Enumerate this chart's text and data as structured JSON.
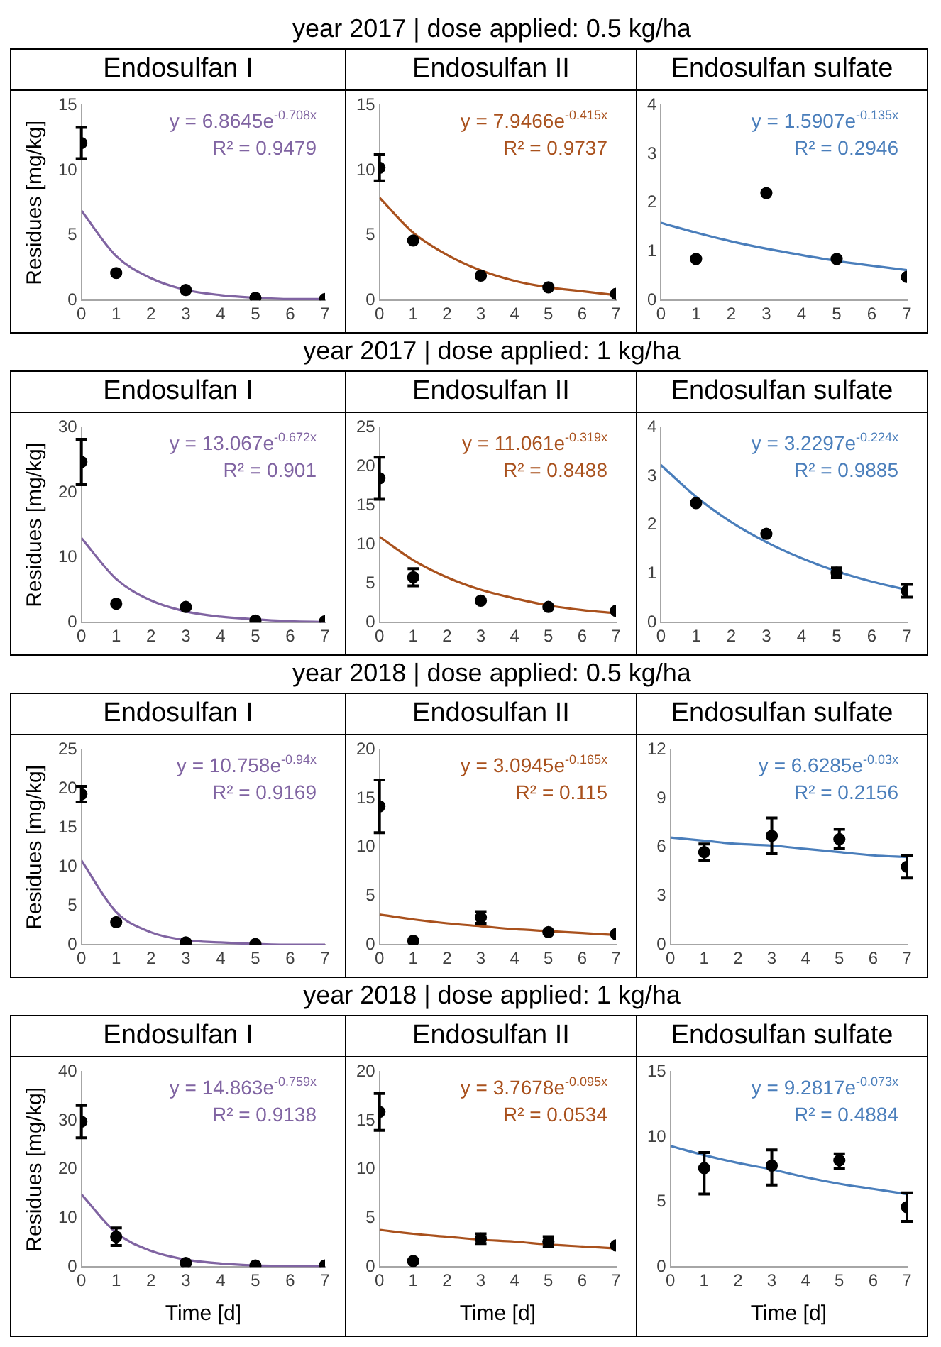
{
  "chart_data": [
    {
      "type": "scatter",
      "title": "Endosulfan I",
      "ylabel": "Residues [mg/kg]",
      "xlim": [
        0,
        7
      ],
      "xticks": [
        0,
        1,
        2,
        3,
        4,
        5,
        6,
        7
      ],
      "ylim": [
        0,
        15
      ],
      "yticks": [
        0,
        5,
        10,
        15
      ],
      "marker": "circle",
      "grid": false,
      "legend": false,
      "series": [
        {
          "type": "scatter",
          "color": "#000000",
          "x": [
            0,
            1,
            3,
            5,
            7
          ],
          "values": [
            12.1,
            2.1,
            0.8,
            0.2,
            0.1
          ],
          "errors": [
            1.2,
            null,
            null,
            null,
            null
          ]
        },
        {
          "type": "line",
          "marker": "none",
          "color": "#8064a2",
          "x": [
            0,
            1,
            2,
            3,
            4,
            5,
            6,
            7
          ],
          "values": [
            6.9,
            3.4,
            1.7,
            0.8,
            0.4,
            0.2,
            0.1,
            0.1
          ]
        }
      ],
      "annotations": [
        "y = 6.8645e$^{-0.708x}$",
        "R² = 0.9479"
      ]
    },
    {
      "type": "scatter",
      "subtitle": "year 2017 | dose applied: 0.5 kg/ha",
      "title": "Endosulfan II",
      "xlim": [
        0,
        7
      ],
      "xticks": [
        0,
        1,
        2,
        3,
        4,
        5,
        6,
        7
      ],
      "ylim": [
        0,
        15
      ],
      "yticks": [
        0,
        5,
        10,
        15
      ],
      "marker": "circle",
      "grid": false,
      "legend": false,
      "series": [
        {
          "type": "scatter",
          "color": "#000000",
          "x": [
            0,
            1,
            3,
            5,
            7
          ],
          "values": [
            10.2,
            4.6,
            1.9,
            1.0,
            0.5
          ],
          "errors": [
            1.0,
            null,
            null,
            null,
            null
          ]
        },
        {
          "type": "line",
          "marker": "none",
          "color": "#a9511d",
          "x": [
            0,
            1,
            2,
            3,
            4,
            5,
            6,
            7
          ],
          "values": [
            7.9,
            5.2,
            3.5,
            2.3,
            1.5,
            1.0,
            0.7,
            0.4
          ]
        }
      ],
      "annotations": [
        "y = 7.9466e$^{-0.415x}$",
        "R² = 0.9737"
      ]
    },
    {
      "type": "scatter",
      "title": "Endosulfan sulfate",
      "xlim": [
        0,
        7
      ],
      "xticks": [
        0,
        1,
        2,
        3,
        4,
        5,
        6,
        7
      ],
      "ylim": [
        0,
        4
      ],
      "yticks": [
        0,
        1,
        2,
        3,
        4
      ],
      "marker": "circle",
      "grid": false,
      "legend": false,
      "series": [
        {
          "type": "scatter",
          "color": "#000000",
          "x": [
            1,
            3,
            5,
            7
          ],
          "values": [
            0.85,
            2.2,
            0.85,
            0.48
          ]
        },
        {
          "type": "line",
          "marker": "none",
          "color": "#4a7ebb",
          "x": [
            0,
            1,
            2,
            3,
            4,
            5,
            6,
            7
          ],
          "values": [
            1.59,
            1.39,
            1.21,
            1.06,
            0.93,
            0.81,
            0.71,
            0.62
          ]
        }
      ],
      "annotations": [
        "y = 1.5907e$^{-0.135x}$",
        "R² = 0.2946"
      ]
    },
    {
      "type": "scatter",
      "title": "Endosulfan I",
      "ylabel": "Residues [mg/kg]",
      "xlim": [
        0,
        7
      ],
      "xticks": [
        0,
        1,
        2,
        3,
        4,
        5,
        6,
        7
      ],
      "ylim": [
        0,
        30
      ],
      "yticks": [
        0,
        10,
        20,
        30
      ],
      "marker": "circle",
      "grid": false,
      "legend": false,
      "series": [
        {
          "type": "scatter",
          "color": "#000000",
          "x": [
            0,
            1,
            3,
            5,
            7
          ],
          "values": [
            24.7,
            2.9,
            2.4,
            0.3,
            0.2
          ],
          "errors": [
            3.5,
            null,
            null,
            null,
            null
          ]
        },
        {
          "type": "line",
          "marker": "none",
          "color": "#8064a2",
          "x": [
            0,
            1,
            2,
            3,
            4,
            5,
            6,
            7
          ],
          "values": [
            13,
            6.7,
            3.4,
            1.7,
            0.9,
            0.5,
            0.2,
            0.1
          ]
        }
      ],
      "annotations": [
        "y = 13.067e$^{-0.672x}$",
        "R² = 0.901"
      ]
    },
    {
      "type": "scatter",
      "subtitle": "year 2017 | dose applied: 1 kg/ha",
      "title": "Endosulfan II",
      "xlim": [
        0,
        7
      ],
      "xticks": [
        0,
        1,
        2,
        3,
        4,
        5,
        6,
        7
      ],
      "ylim": [
        0,
        25
      ],
      "yticks": [
        0,
        5,
        10,
        15,
        20,
        25
      ],
      "marker": "circle",
      "grid": false,
      "legend": false,
      "series": [
        {
          "type": "scatter",
          "color": "#000000",
          "x": [
            0,
            1,
            3,
            5,
            7
          ],
          "values": [
            18.5,
            5.8,
            2.8,
            2.0,
            1.5
          ],
          "errors": [
            2.7,
            1.1,
            null,
            null,
            null
          ]
        },
        {
          "type": "line",
          "marker": "none",
          "color": "#a9511d",
          "x": [
            0,
            1,
            2,
            3,
            4,
            5,
            6,
            7
          ],
          "values": [
            11,
            8,
            5.8,
            4.2,
            3.1,
            2.2,
            1.6,
            1.2
          ]
        }
      ],
      "annotations": [
        "y = 11.061e$^{-0.319x}$",
        "R² = 0.8488"
      ]
    },
    {
      "type": "scatter",
      "title": "Endosulfan sulfate",
      "xlim": [
        0,
        7
      ],
      "xticks": [
        0,
        1,
        2,
        3,
        4,
        5,
        6,
        7
      ],
      "ylim": [
        0,
        4
      ],
      "yticks": [
        0,
        1,
        2,
        3,
        4
      ],
      "marker": "circle",
      "grid": false,
      "legend": false,
      "series": [
        {
          "type": "scatter",
          "color": "#000000",
          "x": [
            1,
            3,
            5,
            7
          ],
          "values": [
            2.45,
            1.82,
            1.02,
            0.65
          ],
          "errors": [
            null,
            null,
            0.1,
            0.13
          ]
        },
        {
          "type": "line",
          "marker": "none",
          "color": "#4a7ebb",
          "x": [
            0,
            1,
            2,
            3,
            4,
            5,
            6,
            7
          ],
          "values": [
            3.23,
            2.58,
            2.06,
            1.65,
            1.32,
            1.05,
            0.84,
            0.67
          ]
        }
      ],
      "annotations": [
        "y = 3.2297e$^{-0.224x}$",
        "R² = 0.9885"
      ]
    },
    {
      "type": "scatter",
      "title": "Endosulfan I",
      "ylabel": "Residues [mg/kg]",
      "xlim": [
        0,
        7
      ],
      "xticks": [
        0,
        1,
        2,
        3,
        4,
        5,
        6,
        7
      ],
      "ylim": [
        0,
        25
      ],
      "yticks": [
        0,
        5,
        10,
        15,
        20,
        25
      ],
      "marker": "circle",
      "grid": false,
      "legend": false,
      "series": [
        {
          "type": "scatter",
          "color": "#000000",
          "x": [
            0,
            1,
            3,
            5
          ],
          "values": [
            19.3,
            2.9,
            0.3,
            0.1
          ],
          "errors": [
            1.0,
            null,
            null,
            null
          ]
        },
        {
          "type": "line",
          "marker": "none",
          "color": "#8064a2",
          "x": [
            0,
            1,
            2,
            3,
            4,
            5,
            6,
            7
          ],
          "values": [
            10.8,
            4.2,
            1.6,
            0.6,
            0.3,
            0.1,
            0,
            0
          ]
        }
      ],
      "annotations": [
        "y = 10.758e$^{-0.94x}$",
        "R² = 0.9169"
      ]
    },
    {
      "type": "scatter",
      "subtitle": "year 2018 | dose applied: 0.5 kg/ha",
      "title": "Endosulfan II",
      "xlim": [
        0,
        7
      ],
      "xticks": [
        0,
        1,
        2,
        3,
        4,
        5,
        6,
        7
      ],
      "ylim": [
        0,
        20
      ],
      "yticks": [
        0,
        5,
        10,
        15,
        20
      ],
      "marker": "circle",
      "grid": false,
      "legend": false,
      "series": [
        {
          "type": "scatter",
          "color": "#000000",
          "x": [
            0,
            1,
            3,
            5,
            7
          ],
          "values": [
            14.2,
            0.4,
            2.8,
            1.3,
            1.1
          ],
          "errors": [
            2.7,
            null,
            0.6,
            null,
            null
          ]
        },
        {
          "type": "line",
          "marker": "none",
          "color": "#a9511d",
          "x": [
            0,
            1,
            2,
            3,
            4,
            5,
            6,
            7
          ],
          "values": [
            3.1,
            2.6,
            2.2,
            1.9,
            1.6,
            1.4,
            1.2,
            1.0
          ]
        }
      ],
      "annotations": [
        "y = 3.0945e$^{-0.165x}$",
        "R² = 0.115"
      ]
    },
    {
      "type": "scatter",
      "title": "Endosulfan sulfate",
      "xlim": [
        0,
        7
      ],
      "xticks": [
        0,
        1,
        2,
        3,
        4,
        5,
        6,
        7
      ],
      "ylim": [
        0,
        12
      ],
      "yticks": [
        0,
        3,
        6,
        9,
        12
      ],
      "marker": "circle",
      "grid": false,
      "legend": false,
      "series": [
        {
          "type": "scatter",
          "color": "#000000",
          "x": [
            1,
            3,
            5,
            7
          ],
          "values": [
            5.7,
            6.7,
            6.5,
            4.8
          ],
          "errors": [
            0.5,
            1.1,
            0.6,
            0.7
          ]
        },
        {
          "type": "line",
          "marker": "none",
          "color": "#4a7ebb",
          "x": [
            0,
            1,
            2,
            3,
            4,
            5,
            6,
            7
          ],
          "values": [
            6.6,
            6.4,
            6.2,
            6.1,
            5.9,
            5.7,
            5.5,
            5.4
          ]
        }
      ],
      "annotations": [
        "y = 6.6285e$^{-0.03x}$",
        "R² = 0.2156"
      ]
    },
    {
      "type": "scatter",
      "title": "Endosulfan I",
      "ylabel": "Residues [mg/kg]",
      "xlabel": "Time [d]",
      "xlim": [
        0,
        7
      ],
      "xticks": [
        0,
        1,
        2,
        3,
        4,
        5,
        6,
        7
      ],
      "ylim": [
        0,
        40
      ],
      "yticks": [
        0,
        10,
        20,
        30,
        40
      ],
      "marker": "circle",
      "grid": false,
      "legend": false,
      "series": [
        {
          "type": "scatter",
          "color": "#000000",
          "x": [
            0,
            1,
            3,
            5,
            7
          ],
          "values": [
            29.8,
            6.2,
            0.8,
            0.3,
            0.3
          ],
          "errors": [
            3.3,
            1.8,
            null,
            null,
            null
          ]
        },
        {
          "type": "line",
          "marker": "none",
          "color": "#8064a2",
          "x": [
            0,
            1,
            2,
            3,
            4,
            5,
            6,
            7
          ],
          "values": [
            14.9,
            7,
            3.3,
            1.5,
            0.7,
            0.3,
            0.2,
            0.1
          ]
        }
      ],
      "annotations": [
        "y = 14.863e$^{-0.759x}$",
        "R² = 0.9138"
      ]
    },
    {
      "type": "scatter",
      "subtitle": "year 2018 | dose applied: 1 kg/ha",
      "title": "Endosulfan II",
      "xlabel": "Time [d]",
      "xlim": [
        0,
        7
      ],
      "xticks": [
        0,
        1,
        2,
        3,
        4,
        5,
        6,
        7
      ],
      "ylim": [
        0,
        20
      ],
      "yticks": [
        0,
        5,
        10,
        15,
        20
      ],
      "marker": "circle",
      "grid": false,
      "legend": false,
      "series": [
        {
          "type": "scatter",
          "color": "#000000",
          "x": [
            0,
            1,
            3,
            5,
            7
          ],
          "values": [
            15.9,
            0.6,
            2.9,
            2.6,
            2.2
          ],
          "errors": [
            1.9,
            null,
            0.5,
            0.5,
            null
          ]
        },
        {
          "type": "line",
          "marker": "none",
          "color": "#a9511d",
          "x": [
            0,
            1,
            2,
            3,
            4,
            5,
            6,
            7
          ],
          "values": [
            3.8,
            3.4,
            3.1,
            2.8,
            2.6,
            2.3,
            2.1,
            1.9
          ]
        }
      ],
      "annotations": [
        "y = 3.7678e$^{-0.095x}$",
        "R² = 0.0534"
      ]
    },
    {
      "type": "scatter",
      "title": "Endosulfan sulfate",
      "xlabel": "Time [d]",
      "xlim": [
        0,
        7
      ],
      "xticks": [
        0,
        1,
        2,
        3,
        4,
        5,
        6,
        7
      ],
      "ylim": [
        0,
        15
      ],
      "yticks": [
        0,
        5,
        10,
        15
      ],
      "marker": "circle",
      "grid": false,
      "legend": false,
      "series": [
        {
          "type": "scatter",
          "color": "#000000",
          "x": [
            1,
            3,
            5,
            7
          ],
          "values": [
            7.6,
            7.8,
            8.2,
            4.6
          ],
          "errors": [
            [
              5.6,
              8.8
            ],
            [
              6.3,
              9.0
            ],
            [
              7.6,
              8.7
            ],
            [
              3.5,
              5.7
            ]
          ]
        },
        {
          "type": "line",
          "marker": "none",
          "color": "#4a7ebb",
          "x": [
            0,
            1,
            2,
            3,
            4,
            5,
            6,
            7
          ],
          "values": [
            9.3,
            8.6,
            8,
            7.5,
            6.9,
            6.4,
            6,
            5.6
          ]
        }
      ],
      "annotations": [
        "y = 9.2817e$^{-0.073x}$",
        "R² = 0.4884"
      ]
    }
  ]
}
